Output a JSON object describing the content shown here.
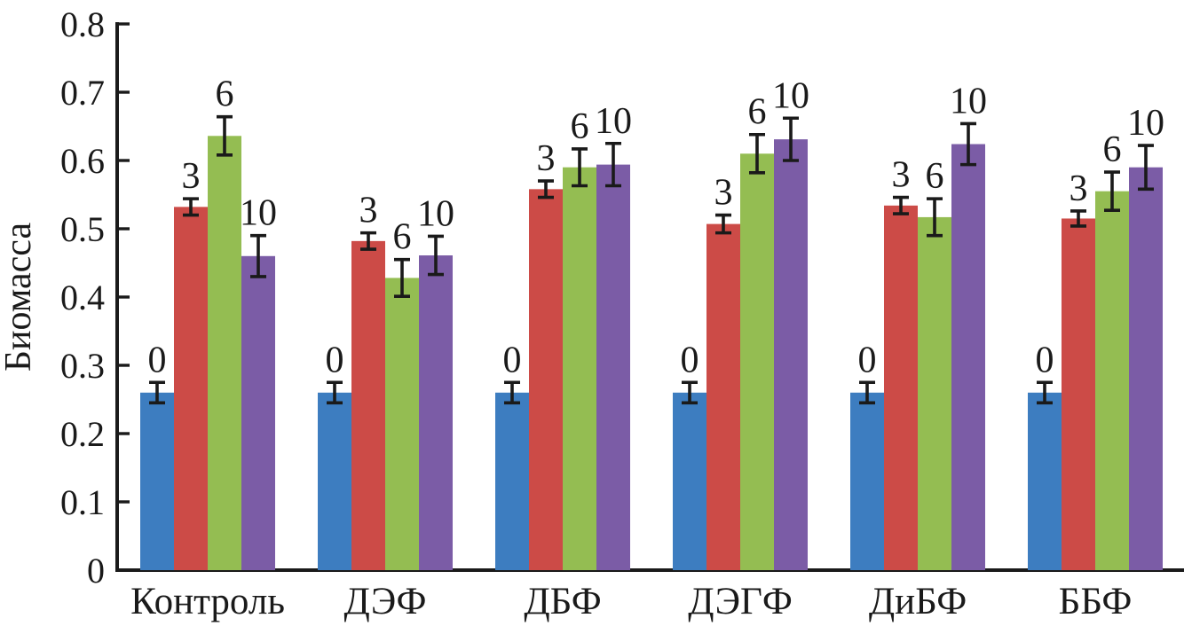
{
  "chart_data": {
    "type": "bar",
    "title": "",
    "xlabel": "",
    "ylabel": "Биомасса",
    "ylim": [
      0,
      0.8
    ],
    "yticks": [
      0,
      0.1,
      0.2,
      0.3,
      0.4,
      0.5,
      0.6,
      0.7,
      0.8
    ],
    "ytick_labels": [
      "0",
      "0.1",
      "0.2",
      "0.3",
      "0.4",
      "0.5",
      "0.6",
      "0.7",
      "0.8"
    ],
    "grid": false,
    "legend_position": "none",
    "bar_label_mode": "series-name-above-each-bar",
    "error_bars": true,
    "categories": [
      "Контроль",
      "ДЭФ",
      "ДБФ",
      "ДЭГФ",
      "ДиБФ",
      "ББФ"
    ],
    "series": [
      {
        "name": "0",
        "color": "#3D7DC0",
        "values": [
          0.26,
          0.26,
          0.26,
          0.26,
          0.26,
          0.26
        ],
        "errors": [
          0.015,
          0.015,
          0.015,
          0.015,
          0.015,
          0.015
        ]
      },
      {
        "name": "3",
        "color": "#CC4B47",
        "values": [
          0.532,
          0.482,
          0.558,
          0.507,
          0.534,
          0.515
        ],
        "errors": [
          0.012,
          0.012,
          0.012,
          0.013,
          0.012,
          0.011
        ]
      },
      {
        "name": "6",
        "color": "#94BD52",
        "values": [
          0.636,
          0.428,
          0.59,
          0.61,
          0.517,
          0.555
        ],
        "errors": [
          0.028,
          0.027,
          0.027,
          0.028,
          0.027,
          0.028
        ]
      },
      {
        "name": "10",
        "color": "#7B5CA6",
        "values": [
          0.46,
          0.461,
          0.594,
          0.631,
          0.624,
          0.59
        ],
        "errors": [
          0.03,
          0.028,
          0.031,
          0.031,
          0.03,
          0.032
        ]
      }
    ],
    "axis_color": "#1a1a1a",
    "error_bar_color": "#1a1a1a"
  }
}
